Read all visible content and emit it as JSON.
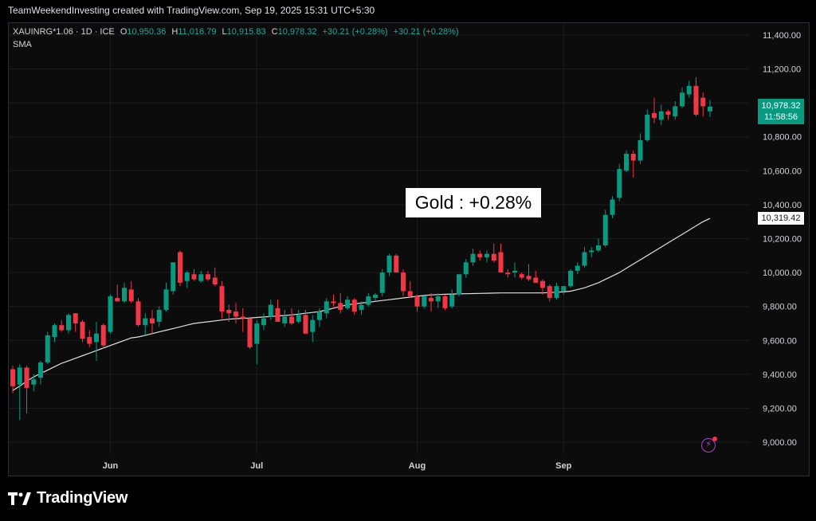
{
  "header": {
    "caption": "TeamWeekendInvesting created with TradingView.com, Sep 19, 2025 15:31 UTC+5:30"
  },
  "legend": {
    "symbol": "XAUINRG*1.06 · 1D · ICE",
    "open_label": "O",
    "open": "10,950.36",
    "high_label": "H",
    "high": "11,016.79",
    "low_label": "L",
    "low": "10,915.83",
    "close_label": "C",
    "close": "10,978.32",
    "change": "+30.21 (+0.28%)",
    "change2": "+30.21 (+0.28%)",
    "indicator": "SMA"
  },
  "annotation": "Gold : +0.28%",
  "last_price_tag": {
    "price": "10,978.32",
    "countdown": "11:58:56"
  },
  "sma_tag": "10,319.42",
  "branding": "TradingView",
  "colors": {
    "up": "#089981",
    "down": "#f23645",
    "sma": "#e0e0e0",
    "grid": "#1c1c1c",
    "axis_text": "#d1d4dc"
  },
  "chart_data": {
    "type": "candlestick",
    "y_axis": {
      "ticks": [
        9000,
        9200,
        9400,
        9600,
        9800,
        10000,
        10200,
        10400,
        10600,
        10800,
        11000,
        11200,
        11400
      ],
      "tick_labels": [
        "9,000.00",
        "9,200.00",
        "9,400.00",
        "9,600.00",
        "9,800.00",
        "10,000.00",
        "10,200.00",
        "10,400.00",
        "10,600.00",
        "10,800.00",
        "11,000.00",
        "11,200.00",
        "11,400.00"
      ],
      "range": [
        8930,
        11470
      ]
    },
    "x_axis": {
      "ticks": [
        {
          "label": "Jun",
          "index": 14
        },
        {
          "label": "Jul",
          "index": 35
        },
        {
          "label": "Aug",
          "index": 58
        },
        {
          "label": "Sep",
          "index": 79
        }
      ]
    },
    "candles": [
      {
        "o": 9430,
        "h": 9450,
        "l": 9290,
        "c": 9330
      },
      {
        "o": 9340,
        "h": 9460,
        "l": 9130,
        "c": 9440
      },
      {
        "o": 9440,
        "h": 9450,
        "l": 9170,
        "c": 9320
      },
      {
        "o": 9340,
        "h": 9400,
        "l": 9300,
        "c": 9370
      },
      {
        "o": 9380,
        "h": 9480,
        "l": 9340,
        "c": 9470
      },
      {
        "o": 9470,
        "h": 9650,
        "l": 9460,
        "c": 9630
      },
      {
        "o": 9620,
        "h": 9700,
        "l": 9590,
        "c": 9690
      },
      {
        "o": 9690,
        "h": 9720,
        "l": 9650,
        "c": 9660
      },
      {
        "o": 9660,
        "h": 9760,
        "l": 9640,
        "c": 9750
      },
      {
        "o": 9760,
        "h": 9760,
        "l": 9650,
        "c": 9700
      },
      {
        "o": 9710,
        "h": 9720,
        "l": 9590,
        "c": 9610
      },
      {
        "o": 9620,
        "h": 9660,
        "l": 9560,
        "c": 9580
      },
      {
        "o": 9590,
        "h": 9710,
        "l": 9480,
        "c": 9640
      },
      {
        "o": 9690,
        "h": 9700,
        "l": 9550,
        "c": 9570
      },
      {
        "o": 9650,
        "h": 9870,
        "l": 9640,
        "c": 9860
      },
      {
        "o": 9850,
        "h": 9930,
        "l": 9830,
        "c": 9830
      },
      {
        "o": 9830,
        "h": 9940,
        "l": 9820,
        "c": 9910
      },
      {
        "o": 9900,
        "h": 9950,
        "l": 9820,
        "c": 9830
      },
      {
        "o": 9830,
        "h": 9850,
        "l": 9680,
        "c": 9690
      },
      {
        "o": 9690,
        "h": 9760,
        "l": 9630,
        "c": 9730
      },
      {
        "o": 9730,
        "h": 9780,
        "l": 9640,
        "c": 9700
      },
      {
        "o": 9710,
        "h": 9800,
        "l": 9680,
        "c": 9780
      },
      {
        "o": 9780,
        "h": 9940,
        "l": 9770,
        "c": 9900
      },
      {
        "o": 9890,
        "h": 10040,
        "l": 9870,
        "c": 10060
      },
      {
        "o": 10120,
        "h": 10130,
        "l": 9920,
        "c": 9940
      },
      {
        "o": 9950,
        "h": 10010,
        "l": 9910,
        "c": 10000
      },
      {
        "o": 9990,
        "h": 10020,
        "l": 9950,
        "c": 9960
      },
      {
        "o": 9950,
        "h": 10010,
        "l": 9940,
        "c": 9990
      },
      {
        "o": 9990,
        "h": 10010,
        "l": 9950,
        "c": 9960
      },
      {
        "o": 9970,
        "h": 10030,
        "l": 9920,
        "c": 9930
      },
      {
        "o": 9920,
        "h": 9950,
        "l": 9730,
        "c": 9770
      },
      {
        "o": 9780,
        "h": 9810,
        "l": 9710,
        "c": 9760
      },
      {
        "o": 9770,
        "h": 9820,
        "l": 9700,
        "c": 9740
      },
      {
        "o": 9740,
        "h": 9790,
        "l": 9650,
        "c": 9730
      },
      {
        "o": 9730,
        "h": 9740,
        "l": 9550,
        "c": 9560
      },
      {
        "o": 9580,
        "h": 9720,
        "l": 9460,
        "c": 9700
      },
      {
        "o": 9690,
        "h": 9760,
        "l": 9660,
        "c": 9730
      },
      {
        "o": 9740,
        "h": 9840,
        "l": 9720,
        "c": 9810
      },
      {
        "o": 9790,
        "h": 9840,
        "l": 9710,
        "c": 9710
      },
      {
        "o": 9700,
        "h": 9780,
        "l": 9680,
        "c": 9740
      },
      {
        "o": 9740,
        "h": 9790,
        "l": 9690,
        "c": 9700
      },
      {
        "o": 9710,
        "h": 9780,
        "l": 9700,
        "c": 9750
      },
      {
        "o": 9750,
        "h": 9780,
        "l": 9640,
        "c": 9640
      },
      {
        "o": 9650,
        "h": 9750,
        "l": 9590,
        "c": 9720
      },
      {
        "o": 9720,
        "h": 9790,
        "l": 9680,
        "c": 9770
      },
      {
        "o": 9760,
        "h": 9850,
        "l": 9730,
        "c": 9830
      },
      {
        "o": 9830,
        "h": 9870,
        "l": 9800,
        "c": 9820
      },
      {
        "o": 9820,
        "h": 9880,
        "l": 9760,
        "c": 9780
      },
      {
        "o": 9790,
        "h": 9860,
        "l": 9780,
        "c": 9840
      },
      {
        "o": 9840,
        "h": 9850,
        "l": 9750,
        "c": 9770
      },
      {
        "o": 9780,
        "h": 9830,
        "l": 9750,
        "c": 9810
      },
      {
        "o": 9810,
        "h": 9880,
        "l": 9800,
        "c": 9860
      },
      {
        "o": 9850,
        "h": 9880,
        "l": 9830,
        "c": 9870
      },
      {
        "o": 9880,
        "h": 10020,
        "l": 9860,
        "c": 10000
      },
      {
        "o": 10000,
        "h": 10110,
        "l": 9980,
        "c": 10100
      },
      {
        "o": 10100,
        "h": 10110,
        "l": 10000,
        "c": 10000
      },
      {
        "o": 10000,
        "h": 10020,
        "l": 9860,
        "c": 9890
      },
      {
        "o": 9890,
        "h": 9950,
        "l": 9850,
        "c": 9860
      },
      {
        "o": 9860,
        "h": 9870,
        "l": 9770,
        "c": 9800
      },
      {
        "o": 9800,
        "h": 9860,
        "l": 9790,
        "c": 9860
      },
      {
        "o": 9850,
        "h": 9880,
        "l": 9770,
        "c": 9830
      },
      {
        "o": 9830,
        "h": 9880,
        "l": 9790,
        "c": 9860
      },
      {
        "o": 9860,
        "h": 9870,
        "l": 9780,
        "c": 9790
      },
      {
        "o": 9800,
        "h": 9900,
        "l": 9790,
        "c": 9870
      },
      {
        "o": 9870,
        "h": 9990,
        "l": 9860,
        "c": 9990
      },
      {
        "o": 9990,
        "h": 10080,
        "l": 9970,
        "c": 10060
      },
      {
        "o": 10060,
        "h": 10140,
        "l": 10040,
        "c": 10110
      },
      {
        "o": 10110,
        "h": 10130,
        "l": 10070,
        "c": 10090
      },
      {
        "o": 10090,
        "h": 10130,
        "l": 10060,
        "c": 10110
      },
      {
        "o": 10110,
        "h": 10170,
        "l": 10060,
        "c": 10070
      },
      {
        "o": 10120,
        "h": 10170,
        "l": 10000,
        "c": 10000
      },
      {
        "o": 10000,
        "h": 10020,
        "l": 9970,
        "c": 9990
      },
      {
        "o": 10000,
        "h": 10060,
        "l": 9970,
        "c": 10010
      },
      {
        "o": 9990,
        "h": 10000,
        "l": 9960,
        "c": 9970
      },
      {
        "o": 9980,
        "h": 10050,
        "l": 9950,
        "c": 9960
      },
      {
        "o": 9970,
        "h": 10010,
        "l": 9940,
        "c": 9940
      },
      {
        "o": 9950,
        "h": 9960,
        "l": 9870,
        "c": 9910
      },
      {
        "o": 9920,
        "h": 9930,
        "l": 9830,
        "c": 9850
      },
      {
        "o": 9850,
        "h": 9940,
        "l": 9840,
        "c": 9920
      },
      {
        "o": 9890,
        "h": 9920,
        "l": 9870,
        "c": 9920
      },
      {
        "o": 9920,
        "h": 10020,
        "l": 9910,
        "c": 10010
      },
      {
        "o": 10010,
        "h": 10060,
        "l": 9990,
        "c": 10040
      },
      {
        "o": 10040,
        "h": 10150,
        "l": 10030,
        "c": 10120
      },
      {
        "o": 10120,
        "h": 10150,
        "l": 10090,
        "c": 10130
      },
      {
        "o": 10130,
        "h": 10200,
        "l": 10120,
        "c": 10160
      },
      {
        "o": 10160,
        "h": 10370,
        "l": 10150,
        "c": 10340
      },
      {
        "o": 10340,
        "h": 10450,
        "l": 10320,
        "c": 10430
      },
      {
        "o": 10440,
        "h": 10640,
        "l": 10420,
        "c": 10610
      },
      {
        "o": 10600,
        "h": 10720,
        "l": 10590,
        "c": 10700
      },
      {
        "o": 10700,
        "h": 10720,
        "l": 10560,
        "c": 10660
      },
      {
        "o": 10660,
        "h": 10820,
        "l": 10640,
        "c": 10780
      },
      {
        "o": 10780,
        "h": 10960,
        "l": 10770,
        "c": 10930
      },
      {
        "o": 10940,
        "h": 11030,
        "l": 10880,
        "c": 10910
      },
      {
        "o": 10900,
        "h": 10990,
        "l": 10870,
        "c": 10950
      },
      {
        "o": 10950,
        "h": 10960,
        "l": 10900,
        "c": 10930
      },
      {
        "o": 10920,
        "h": 11010,
        "l": 10900,
        "c": 10980
      },
      {
        "o": 10980,
        "h": 11090,
        "l": 10970,
        "c": 11060
      },
      {
        "o": 11050,
        "h": 11130,
        "l": 11030,
        "c": 11100
      },
      {
        "o": 11100,
        "h": 11150,
        "l": 10920,
        "c": 10930
      },
      {
        "o": 11030,
        "h": 11060,
        "l": 10920,
        "c": 10980
      },
      {
        "o": 10950,
        "h": 11017,
        "l": 10916,
        "c": 10978
      }
    ],
    "sma": [
      9305,
      9330,
      9360,
      9385,
      9405,
      9425,
      9445,
      9465,
      9480,
      9495,
      9510,
      9525,
      9540,
      9555,
      9570,
      9585,
      9600,
      9615,
      9620,
      9630,
      9640,
      9650,
      9660,
      9670,
      9680,
      9690,
      9700,
      9705,
      9710,
      9715,
      9720,
      9725,
      9728,
      9730,
      9732,
      9735,
      9738,
      9741,
      9744,
      9747,
      9750,
      9755,
      9760,
      9765,
      9770,
      9780,
      9790,
      9800,
      9810,
      9815,
      9820,
      9825,
      9830,
      9835,
      9840,
      9845,
      9850,
      9855,
      9860,
      9865,
      9868,
      9870,
      9872,
      9873,
      9874,
      9875,
      9876,
      9877,
      9878,
      9879,
      9880,
      9880,
      9880,
      9880,
      9880,
      9880,
      9880,
      9882,
      9884,
      9886,
      9890,
      9900,
      9910,
      9925,
      9940,
      9960,
      9980,
      10000,
      10025,
      10050,
      10075,
      10100,
      10125,
      10150,
      10175,
      10200,
      10225,
      10250,
      10275,
      10300,
      10319
    ]
  }
}
